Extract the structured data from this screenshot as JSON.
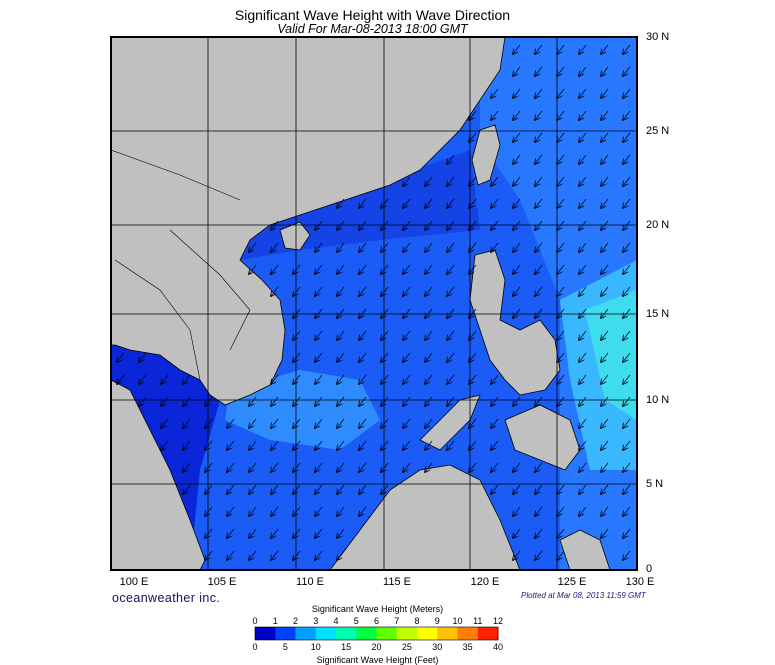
{
  "title": "Significant Wave Height with Wave Direction",
  "subtitle": "Valid For Mar-08-2013 18:00 GMT",
  "latitude_labels": [
    "30 N",
    "25 N",
    "20 N",
    "15 N",
    "10 N",
    "5 N",
    "0"
  ],
  "longitude_labels": [
    "100 E",
    "105 E",
    "110 E",
    "115 E",
    "120 E",
    "125 E",
    "130 E"
  ],
  "credit": "oceanweather inc.",
  "plotted_note": "Plotted at Mar 08, 2013 11:59 GMT",
  "legend": {
    "meters_title": "Significant Wave Height (Meters)",
    "feet_title": "Significant Wave Height (Feet)",
    "meters_ticks": [
      "0",
      "1",
      "2",
      "3",
      "4",
      "5",
      "6",
      "7",
      "8",
      "9",
      "10",
      "11",
      "12"
    ],
    "feet_ticks": [
      "0",
      "5",
      "10",
      "15",
      "20",
      "25",
      "30",
      "35",
      "40"
    ],
    "colors": [
      "#0000c8",
      "#0040ff",
      "#00a0ff",
      "#00e0ff",
      "#00ffb0",
      "#00ff40",
      "#60ff00",
      "#c0ff00",
      "#ffff00",
      "#ffc000",
      "#ff8000",
      "#ff2000"
    ]
  },
  "colors": {
    "land": "#c0c0c0",
    "sea_deep": "#0a28e6",
    "sea_mid": "#1e64ff",
    "sea_light": "#3ca6ff",
    "sea_cyan": "#3cdcf0"
  },
  "wave_direction": "from northeast toward southwest"
}
